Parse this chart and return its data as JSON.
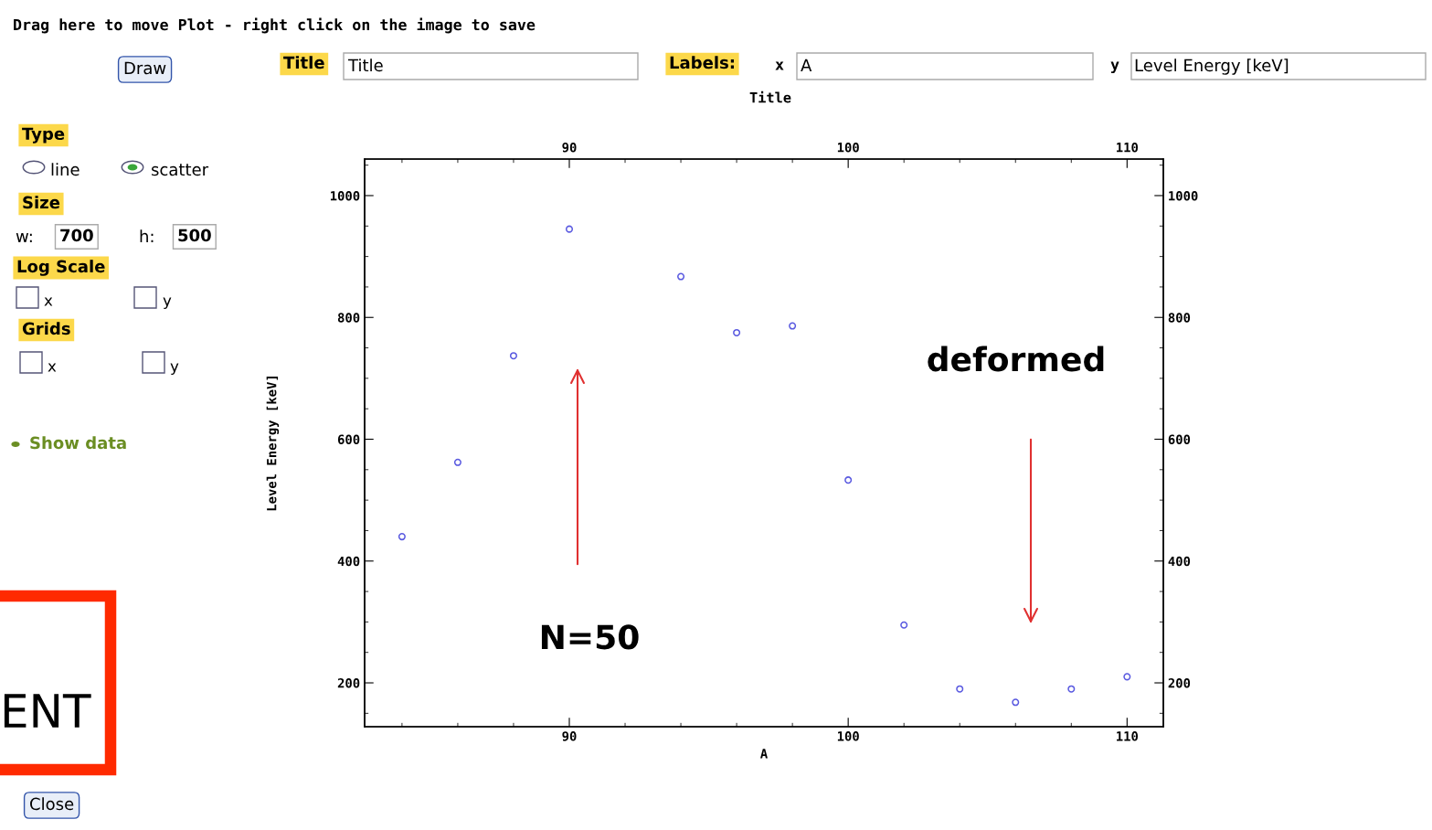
{
  "chart_data": {
    "type": "scatter",
    "title": "Title",
    "xlabel": "A",
    "ylabel": "Level Energy [keV]",
    "x": [
      84,
      86,
      88,
      90,
      94,
      96,
      98,
      100,
      102,
      104,
      106,
      108,
      110
    ],
    "series": [
      {
        "color": "#5a5ae0",
        "values": [
          440,
          562,
          737,
          945,
          867,
          775,
          786,
          533,
          295,
          190,
          168,
          190,
          210
        ]
      }
    ],
    "xlim": [
      82.66,
      111.3
    ],
    "xticks": [
      90,
      100,
      110
    ],
    "x2lim": [
      82.66,
      111.3
    ],
    "x2ticks": [
      90,
      100,
      110
    ],
    "ylim": [
      128,
      1060
    ],
    "yticks": [
      200,
      400,
      600,
      800,
      1000
    ],
    "y2lim": [
      128,
      1060
    ],
    "y2ticks": [
      200,
      400,
      600,
      800,
      1000
    ],
    "marker": "circle",
    "grid": false,
    "legend": false,
    "annotations": [
      "N=50",
      "deformed",
      "Drag here to move Plot - right click on the image to save",
      "Draw",
      "Title",
      "Title",
      "Labels:",
      "x",
      "A",
      "y",
      "Level Energy [keV]",
      "Type",
      "line",
      "scatter",
      "Size",
      "w:",
      "700",
      "h:",
      "500",
      "Log Scale",
      "x",
      "y",
      "Grids",
      "x",
      "y",
      "Show data",
      "ENT",
      "Close"
    ]
  }
}
